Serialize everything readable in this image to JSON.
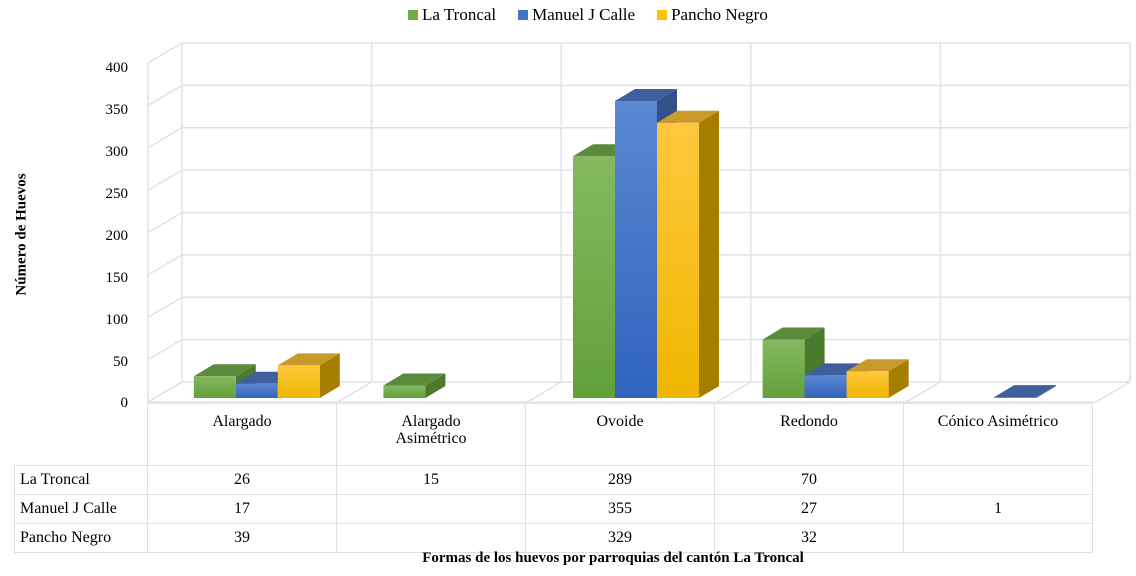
{
  "chart_data": {
    "type": "bar",
    "subtype": "3d-clustered-column-with-data-table",
    "title": "",
    "categories": [
      "Alargado",
      "Alargado Asimétrico",
      "Ovoide",
      "Redondo",
      "Cónico Asimétrico"
    ],
    "series": [
      {
        "name": "La Troncal",
        "color": "#70ad47",
        "values": [
          26,
          15,
          289,
          70,
          null
        ]
      },
      {
        "name": "Manuel J Calle",
        "color": "#4472c4",
        "values": [
          17,
          null,
          355,
          27,
          1
        ]
      },
      {
        "name": "Pancho Negro",
        "color": "#ffc000",
        "values": [
          39,
          null,
          329,
          32,
          null
        ]
      }
    ],
    "xlabel": "Formas de los huevos por parroquias del cantón La Troncal",
    "ylabel": "Número de Huevos",
    "ylim": [
      0,
      400
    ],
    "yticks": [
      0,
      50,
      100,
      150,
      200,
      250,
      300,
      350,
      400
    ],
    "grid": true,
    "legend_position": "top"
  },
  "legend": [
    {
      "label": "La Troncal",
      "color": "#70ad47"
    },
    {
      "label": "Manuel J Calle",
      "color": "#4472c4"
    },
    {
      "label": "Pancho Negro",
      "color": "#ffc000"
    }
  ],
  "axis": {
    "ylabel": "Número de Huevos",
    "xlabel": "Formas de los huevos por parroquias del cantón La Troncal",
    "yticks": [
      "400",
      "350",
      "300",
      "250",
      "200",
      "150",
      "100",
      "50",
      "0"
    ]
  },
  "table": {
    "headers": [
      "Alargado",
      "Alargado\nAsimétrico",
      "Ovoide",
      "Redondo",
      "Cónico Asimétrico"
    ],
    "header_line1": [
      "Alargado",
      "Alargado",
      "Ovoide",
      "Redondo",
      "Cónico Asimétrico"
    ],
    "header_line2": [
      "",
      "Asimétrico",
      "",
      "",
      ""
    ],
    "rows": [
      {
        "label": "La Troncal",
        "cells": [
          "26",
          "15",
          "289",
          "70",
          ""
        ]
      },
      {
        "label": "Manuel J Calle",
        "cells": [
          "17",
          "",
          "355",
          "27",
          "1"
        ]
      },
      {
        "label": "Pancho Negro",
        "cells": [
          "39",
          "",
          "329",
          "32",
          ""
        ]
      }
    ]
  }
}
